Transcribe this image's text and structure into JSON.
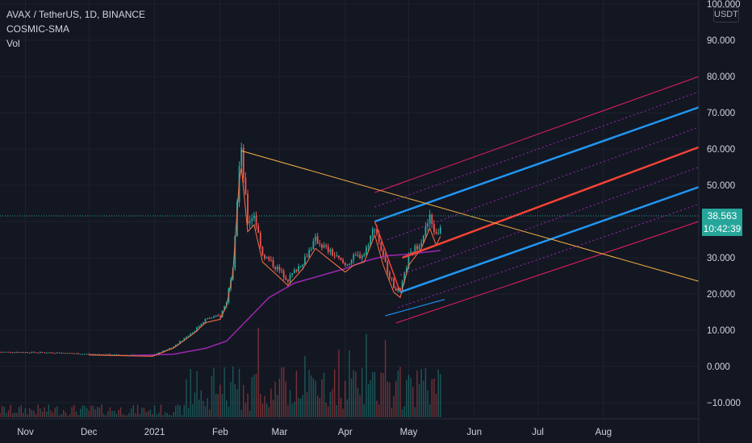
{
  "legend": {
    "symbol_line": "AVAX / TetherUS, 1D, BINANCE",
    "indicator": "COSMIC-SMA",
    "volume": "Vol"
  },
  "price_axis": {
    "unit_label": "USDT",
    "ticks": [
      "100.000",
      "90.000",
      "80.000",
      "70.000",
      "60.000",
      "50.000",
      "40.000",
      "30.000",
      "20.000",
      "10.000",
      "0.000",
      "−10.000"
    ]
  },
  "time_axis": {
    "ticks": [
      "Nov",
      "Dec",
      "2021",
      "Feb",
      "Mar",
      "Apr",
      "May",
      "Jun",
      "Jul",
      "Aug"
    ]
  },
  "last_price": {
    "value": "38.563",
    "countdown": "10:42:39"
  },
  "colors": {
    "background": "#131722",
    "up": "#26a69a",
    "down": "#ef5350",
    "sma": "#9c27b0",
    "pitchfork_blue": "#2196f3",
    "pitchfork_red": "#f44336",
    "pitchfork_magenta": "#e91e63",
    "trendline": "#f5b041"
  },
  "chart_data": {
    "type": "candlestick",
    "title": "AVAX / TetherUS, 1D, BINANCE",
    "ylim": [
      -14,
      100
    ],
    "yticks": [
      100,
      90,
      80,
      70,
      60,
      50,
      40,
      30,
      20,
      10,
      0,
      -10
    ],
    "x_range": [
      "2020-10-20",
      "2021-09-15"
    ],
    "price_path": [
      [
        "2020-10-20",
        4.0
      ],
      [
        "2020-11-15",
        3.8
      ],
      [
        "2020-12-01",
        3.4
      ],
      [
        "2020-12-31",
        3.0
      ],
      [
        "2021-01-10",
        5.5
      ],
      [
        "2021-01-20",
        10.0
      ],
      [
        "2021-01-25",
        13.0
      ],
      [
        "2021-02-01",
        14.0
      ],
      [
        "2021-02-04",
        18.0
      ],
      [
        "2021-02-07",
        28.0
      ],
      [
        "2021-02-10",
        55.0
      ],
      [
        "2021-02-11",
        59.0
      ],
      [
        "2021-02-14",
        40.0
      ],
      [
        "2021-02-17",
        42.0
      ],
      [
        "2021-02-21",
        31.0
      ],
      [
        "2021-02-28",
        27.0
      ],
      [
        "2021-03-05",
        24.0
      ],
      [
        "2021-03-12",
        29.0
      ],
      [
        "2021-03-18",
        35.0
      ],
      [
        "2021-03-22",
        33.0
      ],
      [
        "2021-03-26",
        31.0
      ],
      [
        "2021-04-01",
        28.0
      ],
      [
        "2021-04-05",
        30.0
      ],
      [
        "2021-04-10",
        31.0
      ],
      [
        "2021-04-15",
        39.0
      ],
      [
        "2021-04-19",
        30.0
      ],
      [
        "2021-04-24",
        22.0
      ],
      [
        "2021-04-27",
        20.5
      ],
      [
        "2021-05-01",
        30.0
      ],
      [
        "2021-05-07",
        35.0
      ],
      [
        "2021-05-11",
        41.0
      ],
      [
        "2021-05-14",
        36.0
      ],
      [
        "2021-05-16",
        38.6
      ]
    ],
    "sma_path": [
      [
        "2020-12-20",
        3.0
      ],
      [
        "2021-01-10",
        3.4
      ],
      [
        "2021-01-25",
        5.0
      ],
      [
        "2021-02-04",
        7.0
      ],
      [
        "2021-02-14",
        13.0
      ],
      [
        "2021-02-24",
        19.0
      ],
      [
        "2021-03-08",
        23.0
      ],
      [
        "2021-03-20",
        25.0
      ],
      [
        "2021-04-01",
        27.0
      ],
      [
        "2021-04-10",
        29.0
      ],
      [
        "2021-04-20",
        30.5
      ],
      [
        "2021-05-01",
        31.0
      ],
      [
        "2021-05-16",
        32.0
      ]
    ],
    "pitchfork": {
      "upper_start": [
        "2021-04-15",
        40.0
      ],
      "upper_end": [
        "2021-09-15",
        71.5
      ],
      "median_start": [
        "2021-04-28",
        30.0
      ],
      "median_end": [
        "2021-09-15",
        60.5
      ],
      "lower_start": [
        "2021-04-27",
        20.5
      ],
      "lower_end": [
        "2021-09-15",
        49.5
      ],
      "outer_top_start": [
        "2021-04-15",
        48.0
      ],
      "outer_top_end": [
        "2021-09-15",
        80.0
      ],
      "outer_bottom_start": [
        "2021-04-25",
        12.0
      ],
      "outer_bottom_end": [
        "2021-09-15",
        40.0
      ]
    },
    "trendline": {
      "start": [
        "2021-02-11",
        59.5
      ],
      "end": [
        "2021-09-15",
        23.5
      ]
    },
    "regression_line": {
      "start": [
        "2021-04-20",
        14.0
      ],
      "end": [
        "2021-05-18",
        18.5
      ]
    },
    "last_price": 38.563
  }
}
